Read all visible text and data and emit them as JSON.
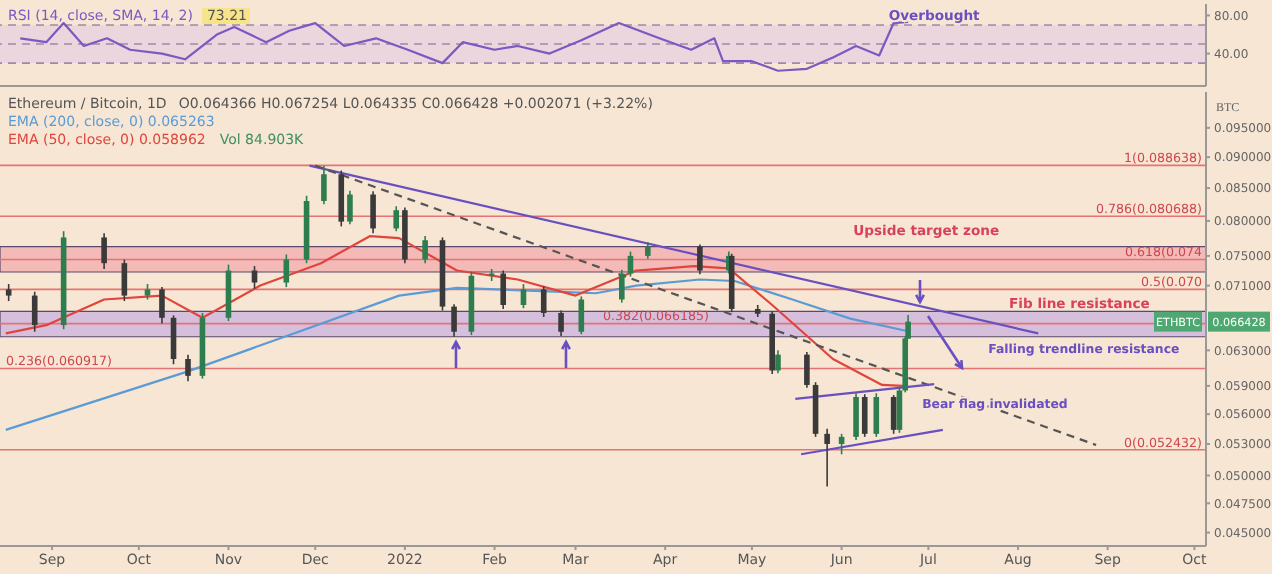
{
  "chart_data": [
    {
      "type": "line",
      "x": [
        "2021-08-21",
        "2021-08-30",
        "2021-09-05",
        "2021-09-12",
        "2021-09-20",
        "2021-09-28",
        "2021-10-09",
        "2021-10-17",
        "2021-10-28",
        "2021-11-03",
        "2021-11-14",
        "2021-11-22",
        "2021-12-01",
        "2021-12-11",
        "2021-12-22",
        "2022-01-02",
        "2022-01-14",
        "2022-01-21",
        "2022-02-01",
        "2022-02-09",
        "2022-02-20",
        "2022-03-03",
        "2022-03-16",
        "2022-03-30",
        "2022-04-10",
        "2022-04-18",
        "2022-04-21",
        "2022-05-01",
        "2022-05-10",
        "2022-05-20",
        "2022-05-29",
        "2022-06-06",
        "2022-06-14",
        "2022-06-19",
        "2022-06-24"
      ],
      "series": [
        {
          "name": "RSI (14, close, SMA, 14, 2)",
          "color": "#7e57c2",
          "values": [
            56,
            52,
            72,
            48,
            56,
            44,
            40,
            34,
            60,
            68,
            52,
            64,
            72,
            48,
            56,
            44,
            30,
            52,
            44,
            48,
            40,
            54,
            72,
            56,
            44,
            56,
            32,
            32,
            22,
            24,
            36,
            48,
            38,
            72,
            73.21
          ]
        }
      ],
      "xlim": [
        "2021-08-14",
        "2022-10-05"
      ],
      "ylim": [
        6,
        92
      ],
      "yticks": [
        {
          "value": 80,
          "label": "80.00"
        },
        {
          "value": 40,
          "label": "40.00"
        }
      ],
      "tick_labels": "y",
      "bands": [
        {
          "axis": "y",
          "from": 30,
          "to": 70,
          "color": "#e6cfe0"
        }
      ],
      "ref_lines": [
        {
          "axis": "y",
          "value": 70,
          "color": "#9a8aa6",
          "line_style": "dashed"
        },
        {
          "axis": "y",
          "value": 50,
          "color": "#9a8aa6",
          "line_style": "dashed"
        },
        {
          "axis": "y",
          "value": 30,
          "color": "#9a8aa6",
          "line_style": "dashed"
        }
      ],
      "annotations": [
        "73.21",
        {
          "text": "Overbought",
          "x": "2022-07-03",
          "y": 80
        }
      ],
      "legend": "top left",
      "marker": "none",
      "grid": false
    },
    {
      "type": "candlestick",
      "title": "Ethereum / Bitcoin, 1D",
      "subtitle": "O0.064366 H0.067254 L0.064335 C0.066428 +0.002071 (+3.22%)",
      "ylabel": "BTC",
      "x": [
        "2021-08-17",
        "2021-08-26",
        "2021-09-05",
        "2021-09-19",
        "2021-09-26",
        "2021-10-04",
        "2021-10-09",
        "2021-10-13",
        "2021-10-18",
        "2021-10-23",
        "2021-11-01",
        "2021-11-10",
        "2021-11-21",
        "2021-11-28",
        "2021-12-04",
        "2021-12-10",
        "2021-12-13",
        "2021-12-21",
        "2021-12-29",
        "2022-01-01",
        "2022-01-08",
        "2022-01-14",
        "2022-01-18",
        "2022-01-24",
        "2022-01-31",
        "2022-02-04",
        "2022-02-11",
        "2022-02-18",
        "2022-02-24",
        "2022-03-03",
        "2022-03-17",
        "2022-03-20",
        "2022-03-26",
        "2022-04-13",
        "2022-04-23",
        "2022-04-24",
        "2022-05-03",
        "2022-05-08",
        "2022-05-10",
        "2022-05-20",
        "2022-05-23",
        "2022-05-27",
        "2022-06-01",
        "2022-06-06",
        "2022-06-09",
        "2022-06-13",
        "2022-06-19",
        "2022-06-21",
        "2022-06-23",
        "2022-06-24"
      ],
      "ohlc": [
        [
          0.0705,
          0.0712,
          0.069,
          0.0697
        ],
        [
          0.0697,
          0.0702,
          0.0652,
          0.066
        ],
        [
          0.066,
          0.0785,
          0.0655,
          0.0776
        ],
        [
          0.0776,
          0.0782,
          0.0732,
          0.074
        ],
        [
          0.074,
          0.0745,
          0.069,
          0.0697
        ],
        [
          0.0697,
          0.0712,
          0.0692,
          0.0705
        ],
        [
          0.0705,
          0.0708,
          0.0662,
          0.0669
        ],
        [
          0.0669,
          0.0672,
          0.0614,
          0.062
        ],
        [
          0.062,
          0.0625,
          0.0595,
          0.0601
        ],
        [
          0.0601,
          0.0675,
          0.0598,
          0.0669
        ],
        [
          0.0669,
          0.0738,
          0.0665,
          0.073
        ],
        [
          0.073,
          0.0736,
          0.0706,
          0.0714
        ],
        [
          0.0714,
          0.0752,
          0.0708,
          0.0745
        ],
        [
          0.0745,
          0.0838,
          0.074,
          0.083
        ],
        [
          0.083,
          0.0886,
          0.0825,
          0.0872
        ],
        [
          0.0872,
          0.0878,
          0.0792,
          0.0799
        ],
        [
          0.0799,
          0.0846,
          0.0795,
          0.084
        ],
        [
          0.084,
          0.0845,
          0.0782,
          0.0789
        ],
        [
          0.0789,
          0.0822,
          0.0785,
          0.0816
        ],
        [
          0.0816,
          0.082,
          0.074,
          0.0745
        ],
        [
          0.0745,
          0.0778,
          0.074,
          0.0772
        ],
        [
          0.0772,
          0.0776,
          0.0678,
          0.0683
        ],
        [
          0.0683,
          0.0686,
          0.0646,
          0.0652
        ],
        [
          0.0652,
          0.0728,
          0.0648,
          0.0723
        ],
        [
          0.0723,
          0.0732,
          0.0716,
          0.0726
        ],
        [
          0.0726,
          0.073,
          0.068,
          0.0685
        ],
        [
          0.0685,
          0.0712,
          0.0681,
          0.0705
        ],
        [
          0.0705,
          0.0709,
          0.067,
          0.0675
        ],
        [
          0.0675,
          0.0678,
          0.0647,
          0.0652
        ],
        [
          0.0652,
          0.0696,
          0.0649,
          0.0692
        ],
        [
          0.0692,
          0.0731,
          0.0688,
          0.0726
        ],
        [
          0.0726,
          0.0756,
          0.0722,
          0.075
        ],
        [
          0.075,
          0.0769,
          0.0746,
          0.0763
        ],
        [
          0.0763,
          0.0766,
          0.0725,
          0.073
        ],
        [
          0.073,
          0.0756,
          0.0726,
          0.075
        ],
        [
          0.075,
          0.0753,
          0.0676,
          0.068
        ],
        [
          0.068,
          0.0685,
          0.067,
          0.0674
        ],
        [
          0.0674,
          0.0677,
          0.0603,
          0.0607
        ],
        [
          0.0607,
          0.063,
          0.0604,
          0.0625
        ],
        [
          0.0625,
          0.0628,
          0.0588,
          0.0591
        ],
        [
          0.0591,
          0.0594,
          0.0537,
          0.054
        ],
        [
          0.054,
          0.0545,
          0.049,
          0.053
        ],
        [
          0.053,
          0.054,
          0.052,
          0.0537
        ],
        [
          0.0537,
          0.0582,
          0.0534,
          0.0578
        ],
        [
          0.0578,
          0.0581,
          0.0537,
          0.054
        ],
        [
          0.054,
          0.0582,
          0.0537,
          0.0578
        ],
        [
          0.0578,
          0.058,
          0.054,
          0.0544
        ],
        [
          0.0544,
          0.0588,
          0.0541,
          0.0585
        ],
        [
          0.0585,
          0.0646,
          0.0583,
          0.0644
        ],
        [
          0.064366,
          0.067254,
          0.064335,
          0.066428
        ]
      ],
      "colors": [
        "#3a3a3a",
        "#3a3a3a",
        "#2e7d4f",
        "#3a3a3a",
        "#3a3a3a",
        "#2e7d4f",
        "#3a3a3a",
        "#3a3a3a",
        "#3a3a3a",
        "#2e7d4f",
        "#2e7d4f",
        "#3a3a3a",
        "#2e7d4f",
        "#2e7d4f",
        "#2e7d4f",
        "#3a3a3a",
        "#2e7d4f",
        "#3a3a3a",
        "#2e7d4f",
        "#3a3a3a",
        "#2e7d4f",
        "#3a3a3a",
        "#3a3a3a",
        "#2e7d4f",
        "#2e7d4f",
        "#3a3a3a",
        "#2e7d4f",
        "#3a3a3a",
        "#3a3a3a",
        "#2e7d4f",
        "#2e7d4f",
        "#2e7d4f",
        "#2e7d4f",
        "#3a3a3a",
        "#2e7d4f",
        "#3a3a3a",
        "#3a3a3a",
        "#3a3a3a",
        "#2e7d4f",
        "#3a3a3a",
        "#3a3a3a",
        "#3a3a3a",
        "#2e7d4f",
        "#2e7d4f",
        "#3a3a3a",
        "#2e7d4f",
        "#3a3a3a",
        "#2e7d4f",
        "#2e7d4f",
        "#2e7d4f"
      ],
      "series": [
        {
          "name": "EMA (200, close, 0) 0.065263",
          "type": "line",
          "color": "#5b9bd5",
          "x": [
            "2021-08-16",
            "2021-10-18",
            "2021-11-26",
            "2021-12-30",
            "2022-01-19",
            "2022-02-22",
            "2022-03-08",
            "2022-03-22",
            "2022-04-13",
            "2022-04-25",
            "2022-05-15",
            "2022-06-04",
            "2022-06-24"
          ],
          "values": [
            0.0544,
            0.0606,
            0.0653,
            0.0697,
            0.0707,
            0.0702,
            0.07,
            0.071,
            0.0718,
            0.0716,
            0.0692,
            0.0668,
            0.065263
          ]
        },
        {
          "name": "EMA (50, close, 0) 0.058962",
          "type": "line",
          "color": "#e0453c",
          "x": [
            "2021-08-16",
            "2021-08-30",
            "2021-09-19",
            "2021-10-09",
            "2021-10-23",
            "2021-11-12",
            "2021-12-03",
            "2021-12-20",
            "2021-12-30",
            "2022-01-19",
            "2022-02-09",
            "2022-03-01",
            "2022-03-22",
            "2022-04-11",
            "2022-04-23",
            "2022-05-08",
            "2022-05-29",
            "2022-06-15",
            "2022-06-24"
          ],
          "values": [
            0.065,
            0.066,
            0.0692,
            0.0697,
            0.0669,
            0.071,
            0.074,
            0.0778,
            0.0775,
            0.073,
            0.0718,
            0.0697,
            0.073,
            0.0736,
            0.0733,
            0.0685,
            0.062,
            0.0591,
            0.058962
          ]
        },
        {
          "type": "line",
          "color": "#6a4fc1",
          "x": [
            "2021-11-29",
            "2022-08-08"
          ],
          "values": [
            0.0886,
            0.065
          ]
        },
        {
          "type": "line",
          "color": "#555555",
          "line_style": "dashed",
          "x": [
            "2021-12-01",
            "2022-08-28"
          ],
          "values": [
            0.0886,
            0.0529
          ]
        },
        {
          "type": "line",
          "color": "#6a4fc1",
          "x": [
            "2022-05-16",
            "2022-07-03"
          ],
          "values": [
            0.0576,
            0.0592
          ]
        },
        {
          "type": "line",
          "color": "#6a4fc1",
          "x": [
            "2022-05-18",
            "2022-07-06"
          ],
          "values": [
            0.052,
            0.0544
          ]
        }
      ],
      "xlim": [
        "2021-08-14",
        "2022-10-05"
      ],
      "xticks": [
        {
          "value": "2021-09-01",
          "label": "Sep"
        },
        {
          "value": "2021-10-01",
          "label": "Oct"
        },
        {
          "value": "2021-11-01",
          "label": "Nov"
        },
        {
          "value": "2021-12-01",
          "label": "Dec"
        },
        {
          "value": "2022-01-01",
          "label": "2022"
        },
        {
          "value": "2022-02-01",
          "label": "Feb"
        },
        {
          "value": "2022-03-01",
          "label": "Mar"
        },
        {
          "value": "2022-04-01",
          "label": "Apr"
        },
        {
          "value": "2022-05-01",
          "label": "May"
        },
        {
          "value": "2022-06-01",
          "label": "Jun"
        },
        {
          "value": "2022-07-01",
          "label": "Jul"
        },
        {
          "value": "2022-08-01",
          "label": "Aug"
        },
        {
          "value": "2022-09-01",
          "label": "Sep"
        },
        {
          "value": "2022-10-01",
          "label": "Oct"
        }
      ],
      "ylim": [
        0.0439,
        0.1015
      ],
      "log": "y",
      "yticks": [
        {
          "value": 0.095,
          "label": "0.095000"
        },
        {
          "value": 0.09,
          "label": "0.090000"
        },
        {
          "value": 0.085,
          "label": "0.085000"
        },
        {
          "value": 0.08,
          "label": "0.080000"
        },
        {
          "value": 0.075,
          "label": "0.075000"
        },
        {
          "value": 0.071,
          "label": "0.071000"
        },
        {
          "value": 0.063,
          "label": "0.063000"
        },
        {
          "value": 0.059,
          "label": "0.059000"
        },
        {
          "value": 0.056,
          "label": "0.056000"
        },
        {
          "value": 0.053,
          "label": "0.053000"
        },
        {
          "value": 0.05,
          "label": "0.050000"
        },
        {
          "value": 0.0475,
          "label": "0.047500"
        },
        {
          "value": 0.045,
          "label": "0.045000"
        }
      ],
      "bands": [
        {
          "axis": "y",
          "from": 0.0728,
          "to": 0.0763,
          "color": "#f2a7ad",
          "label": "Upside target zone"
        },
        {
          "axis": "y",
          "from": 0.0646,
          "to": 0.0677,
          "color": "#c7aee0",
          "label": "Fib line resistance"
        }
      ],
      "ref_lines": [
        {
          "axis": "y",
          "value": 0.088638,
          "label": "1(0.088638)",
          "color": "#e57373"
        },
        {
          "axis": "y",
          "value": 0.080688,
          "label": "0.786(0.080688)",
          "color": "#e57373"
        },
        {
          "axis": "y",
          "value": 0.0745,
          "label": "0.618(0.074",
          "color": "#e57373"
        },
        {
          "axis": "y",
          "value": 0.0705,
          "label": "0.5(0.070",
          "color": "#e57373"
        },
        {
          "axis": "y",
          "value": 0.066185,
          "label": "0.382(0.066185)",
          "color": "#e57373"
        },
        {
          "axis": "y",
          "value": 0.060917,
          "label": "0.236(0.060917)",
          "color": "#e57373"
        },
        {
          "axis": "y",
          "value": 0.052432,
          "label": "0(0.052432)",
          "color": "#e57373"
        }
      ],
      "annotations": [
        "Vol 84.903K",
        {
          "text": "Falling trendline resistance",
          "x": "2022-08-08",
          "y": 0.065
        },
        {
          "text": "Bear flag invalidated",
          "x": "2022-07-03",
          "y": 0.0592
        },
        "ETHBTC",
        "0.066428"
      ],
      "legend": "top left",
      "marker": "none",
      "grid": false
    }
  ]
}
